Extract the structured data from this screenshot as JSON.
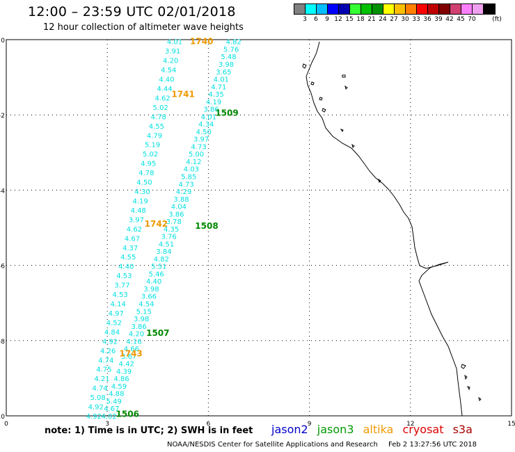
{
  "header": {
    "title": "12:00  –  23:59  UTC  02/01/2018",
    "subtitle": "12 hour collection of altimeter wave heights"
  },
  "color_scale": {
    "colors": [
      "#808080",
      "#00ffff",
      "#00bfff",
      "#0000ff",
      "#0000b0",
      "#33ff33",
      "#00c000",
      "#009000",
      "#ffff00",
      "#ffbf00",
      "#ff8000",
      "#ff0000",
      "#c00000",
      "#800000",
      "#d04070",
      "#ff80ff",
      "#f0a0f0",
      "#000000"
    ],
    "labels": [
      "3",
      "6",
      "9",
      "12",
      "15",
      "18",
      "21",
      "24",
      "27",
      "30",
      "33",
      "36",
      "39",
      "42",
      "45",
      "70"
    ],
    "unit": "(ft)"
  },
  "axes": {
    "x_ticks": [
      "0",
      "3",
      "6",
      "9",
      "12",
      "15"
    ],
    "y_ticks": [
      "0",
      "-2",
      "-4",
      "-6",
      "-8",
      "-10"
    ]
  },
  "tracks": [
    {
      "satellite": "jason3",
      "color": "#00e0e0",
      "start": [
        5.0,
        -0.05
      ],
      "end": [
        2.6,
        -10.0
      ],
      "values": [
        "4.01",
        "3.91",
        "4.20",
        "4.54",
        "4.40",
        "4.44",
        "4.62",
        "5.02",
        "4.78",
        "4.55",
        "4.79",
        "5.19",
        "5.02",
        "4.95",
        "4.78",
        "4.50",
        "4.30",
        "4.19",
        "4.48",
        "3.97",
        "4.62",
        "4.67",
        "4.37",
        "4.55",
        "4.40",
        "4.53",
        "3.77",
        "4.53",
        "4.14",
        "4.97",
        "4.52",
        "4.84",
        "4.92",
        "4.26",
        "4.74",
        "4.75",
        "4.21",
        "4.74",
        "5.08",
        "4.92",
        "4.92"
      ]
    },
    {
      "satellite": "jason3",
      "color": "#00e0e0",
      "start": [
        6.75,
        -0.05
      ],
      "end": [
        3.05,
        -10.0
      ],
      "values": [
        "4.82",
        "5.76",
        "5.48",
        "3.98",
        "3.65",
        "4.01",
        "4.71",
        "4.35",
        "4.19",
        "3.86",
        "4.01",
        "4.34",
        "4.50",
        "3.97",
        "4.73",
        "5.00",
        "4.12",
        "4.03",
        "5.85",
        "4.73",
        "4.29",
        "3.88",
        "4.04",
        "3.86",
        "3.78",
        "4.35",
        "3.76",
        "4.51",
        "3.84",
        "4.82",
        "5.51",
        "5.46",
        "4.40",
        "3.98",
        "3.66",
        "4.54",
        "5.15",
        "3.98",
        "3.86",
        "4.20",
        "4.16",
        "4.66",
        "3.67",
        "4.42",
        "4.39",
        "4.86",
        "4.59",
        "4.88",
        "5.49",
        "4.67",
        "4.02"
      ]
    }
  ],
  "time_labels": [
    {
      "text": "1740",
      "satellite": "altika",
      "color": "#ee9900",
      "x": 5.8,
      "y": -0.05
    },
    {
      "text": "1741",
      "satellite": "altika",
      "color": "#ee9900",
      "x": 5.25,
      "y": -1.45
    },
    {
      "text": "1509",
      "satellite": "jason3",
      "color": "#008800",
      "x": 6.55,
      "y": -1.95
    },
    {
      "text": "1742",
      "satellite": "altika",
      "color": "#ee9900",
      "x": 4.45,
      "y": -4.9
    },
    {
      "text": "1508",
      "satellite": "jason3",
      "color": "#008800",
      "x": 5.95,
      "y": -4.95
    },
    {
      "text": "1507",
      "satellite": "jason3",
      "color": "#008800",
      "x": 4.5,
      "y": -7.8
    },
    {
      "text": "1743",
      "satellite": "altika",
      "color": "#ee9900",
      "x": 3.7,
      "y": -8.35
    },
    {
      "text": "1506",
      "satellite": "jason3",
      "color": "#008800",
      "x": 3.6,
      "y": -9.95
    }
  ],
  "note": "note:  1) Time is in UTC;  2) SWH is in feet",
  "satellites": [
    {
      "name": "jason2",
      "color": "#0000cc"
    },
    {
      "name": "jason3",
      "color": "#009900"
    },
    {
      "name": "altika",
      "color": "#ee9900"
    },
    {
      "name": "cryosat",
      "color": "#dd0000"
    },
    {
      "name": "s3a",
      "color": "#aa0000"
    }
  ],
  "credit": {
    "org": "NOAA/NESDIS Center for Satellite Applications and Research",
    "timestamp": "Feb  2 13:27:56 UTC 2018"
  }
}
